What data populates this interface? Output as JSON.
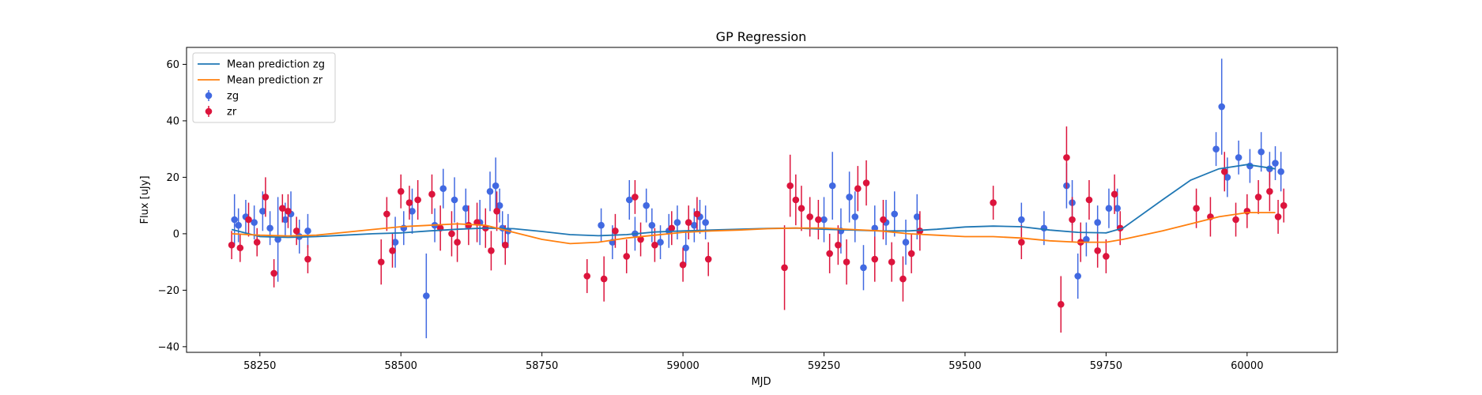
{
  "chart_data": {
    "type": "scatter",
    "title": "GP Regression",
    "xlabel": "MJD",
    "ylabel": "Flux [uJy]",
    "xlim": [
      58120,
      60160
    ],
    "ylim": [
      -42,
      66
    ],
    "x_ticks": [
      58250,
      58500,
      58750,
      59000,
      59250,
      59500,
      59750,
      60000
    ],
    "x_tick_labels": [
      "58250",
      "58500",
      "58750",
      "59000",
      "59250",
      "59500",
      "59750",
      "60000"
    ],
    "y_ticks": [
      -40,
      -20,
      0,
      20,
      40,
      60
    ],
    "y_tick_labels": [
      "−40",
      "−20",
      "0",
      "20",
      "40",
      "60"
    ],
    "grid": false,
    "legend_position": "top-left",
    "series": [
      {
        "name": "Mean prediction zg",
        "kind": "line",
        "color": "#1f77b4",
        "x": [
          58200,
          58250,
          58300,
          58350,
          58400,
          58450,
          58500,
          58550,
          58600,
          58650,
          58700,
          58750,
          58800,
          58850,
          58900,
          58950,
          59000,
          59050,
          59100,
          59150,
          59200,
          59250,
          59300,
          59350,
          59400,
          59450,
          59500,
          59550,
          59600,
          59650,
          59700,
          59750,
          59780,
          59850,
          59900,
          59950,
          60000,
          60050
        ],
        "y": [
          1.5,
          -1,
          -1.3,
          -1,
          -0.5,
          0,
          0.3,
          1,
          1.6,
          2,
          1.8,
          0.8,
          -0.3,
          -0.7,
          -0.3,
          0.6,
          1,
          1.3,
          1.6,
          1.9,
          2,
          1.6,
          1.3,
          1,
          1,
          1.6,
          2.4,
          2.7,
          2.5,
          1.3,
          0.5,
          0.3,
          2,
          12,
          19,
          23,
          24.5,
          23
        ]
      },
      {
        "name": "Mean prediction zr",
        "kind": "line",
        "color": "#ff7f0e",
        "x": [
          58200,
          58250,
          58300,
          58350,
          58400,
          58450,
          58500,
          58550,
          58600,
          58650,
          58700,
          58750,
          58800,
          58850,
          58900,
          58950,
          59000,
          59050,
          59100,
          59150,
          59200,
          59250,
          59300,
          59350,
          59400,
          59450,
          59500,
          59550,
          59600,
          59650,
          59700,
          59750,
          59780,
          59850,
          59900,
          59950,
          60000,
          60050
        ],
        "y": [
          0,
          -0.5,
          -0.8,
          -0.5,
          0.5,
          1.5,
          2.5,
          3,
          3.5,
          3,
          0.5,
          -2,
          -3.5,
          -3,
          -1.5,
          -0.5,
          0.5,
          1,
          1.3,
          1.8,
          2,
          2,
          1.5,
          1,
          0,
          -0.5,
          -1,
          -1,
          -1.5,
          -2.5,
          -3,
          -3,
          -2,
          1,
          3.5,
          6,
          7.5,
          7.5
        ]
      },
      {
        "name": "zg",
        "kind": "errorbar",
        "color": "#4169e1",
        "x": [
          58205,
          58212,
          58225,
          58240,
          58255,
          58268,
          58282,
          58295,
          58305,
          58320,
          58335,
          58490,
          58505,
          58520,
          58545,
          58560,
          58575,
          58595,
          58615,
          58640,
          58658,
          58668,
          58675,
          58680,
          58690,
          58855,
          58875,
          58905,
          58915,
          58935,
          58945,
          58960,
          58975,
          58990,
          59005,
          59020,
          59030,
          59040,
          59250,
          59265,
          59280,
          59295,
          59305,
          59320,
          59340,
          59360,
          59375,
          59395,
          59415,
          59600,
          59640,
          59680,
          59690,
          59700,
          59715,
          59735,
          59755,
          59770,
          59945,
          59955,
          59965,
          59985,
          60005,
          60025,
          60040,
          60050,
          60060
        ],
        "y": [
          5,
          3,
          6,
          4,
          8,
          2,
          -2,
          5,
          7,
          -1,
          1,
          -3,
          2,
          8,
          -22,
          3,
          16,
          12,
          9,
          4,
          15,
          17,
          10,
          2,
          1,
          3,
          -3,
          12,
          0,
          10,
          3,
          -3,
          1,
          4,
          -5,
          3,
          6,
          4,
          5,
          17,
          1,
          13,
          6,
          -12,
          2,
          4,
          7,
          -3,
          6,
          5,
          2,
          17,
          11,
          -15,
          -2,
          4,
          9,
          9,
          30,
          45,
          20,
          27,
          24,
          29,
          23,
          25,
          22
        ],
        "err": [
          9,
          6,
          6,
          6,
          7,
          6,
          15,
          6,
          8,
          6,
          6,
          9,
          6,
          8,
          15,
          6,
          7,
          8,
          7,
          8,
          7,
          10,
          6,
          6,
          6,
          6,
          6,
          7,
          6,
          6,
          6,
          6,
          6,
          6,
          6,
          6,
          6,
          6,
          8,
          12,
          8,
          9,
          9,
          8,
          8,
          8,
          8,
          8,
          8,
          6,
          6,
          8,
          8,
          8,
          6,
          6,
          7,
          7,
          6,
          17,
          7,
          6,
          6,
          7,
          6,
          6,
          7
        ]
      },
      {
        "name": "zr",
        "kind": "errorbar",
        "color": "#dc143c",
        "x": [
          58200,
          58215,
          58230,
          58245,
          58260,
          58275,
          58290,
          58300,
          58315,
          58335,
          58465,
          58475,
          58485,
          58500,
          58515,
          58530,
          58555,
          58570,
          58590,
          58600,
          58620,
          58635,
          58650,
          58660,
          58670,
          58685,
          58830,
          58860,
          58880,
          58900,
          58915,
          58925,
          58950,
          58980,
          59000,
          59010,
          59025,
          59045,
          59180,
          59190,
          59200,
          59210,
          59225,
          59240,
          59260,
          59275,
          59290,
          59310,
          59325,
          59340,
          59355,
          59370,
          59390,
          59405,
          59420,
          59550,
          59600,
          59670,
          59680,
          59690,
          59705,
          59720,
          59735,
          59750,
          59765,
          59775,
          59910,
          59935,
          59960,
          59980,
          60000,
          60020,
          60040,
          60055,
          60065
        ],
        "y": [
          -4,
          -5,
          5,
          -3,
          13,
          -14,
          9,
          8,
          1,
          -9,
          -10,
          7,
          -6,
          15,
          11,
          12,
          14,
          2,
          0,
          -3,
          3,
          4,
          2,
          -6,
          8,
          -4,
          -15,
          -16,
          1,
          -8,
          13,
          -2,
          -4,
          2,
          -11,
          4,
          7,
          -9,
          -12,
          17,
          12,
          9,
          6,
          5,
          -7,
          -4,
          -10,
          16,
          18,
          -9,
          5,
          -10,
          -16,
          -7,
          1,
          11,
          -3,
          -25,
          27,
          5,
          -3,
          12,
          -6,
          -8,
          14,
          2,
          9,
          6,
          22,
          5,
          8,
          13,
          15,
          6,
          10
        ],
        "err": [
          5,
          5,
          6,
          5,
          7,
          5,
          5,
          6,
          5,
          5,
          8,
          6,
          6,
          6,
          6,
          7,
          7,
          8,
          8,
          7,
          7,
          7,
          7,
          7,
          7,
          7,
          6,
          8,
          6,
          6,
          6,
          6,
          6,
          6,
          6,
          6,
          6,
          6,
          15,
          11,
          9,
          8,
          7,
          7,
          7,
          7,
          8,
          8,
          8,
          8,
          7,
          7,
          8,
          7,
          7,
          6,
          6,
          10,
          11,
          8,
          7,
          7,
          6,
          6,
          7,
          6,
          7,
          7,
          7,
          6,
          6,
          6,
          7,
          6,
          6
        ]
      }
    ]
  }
}
